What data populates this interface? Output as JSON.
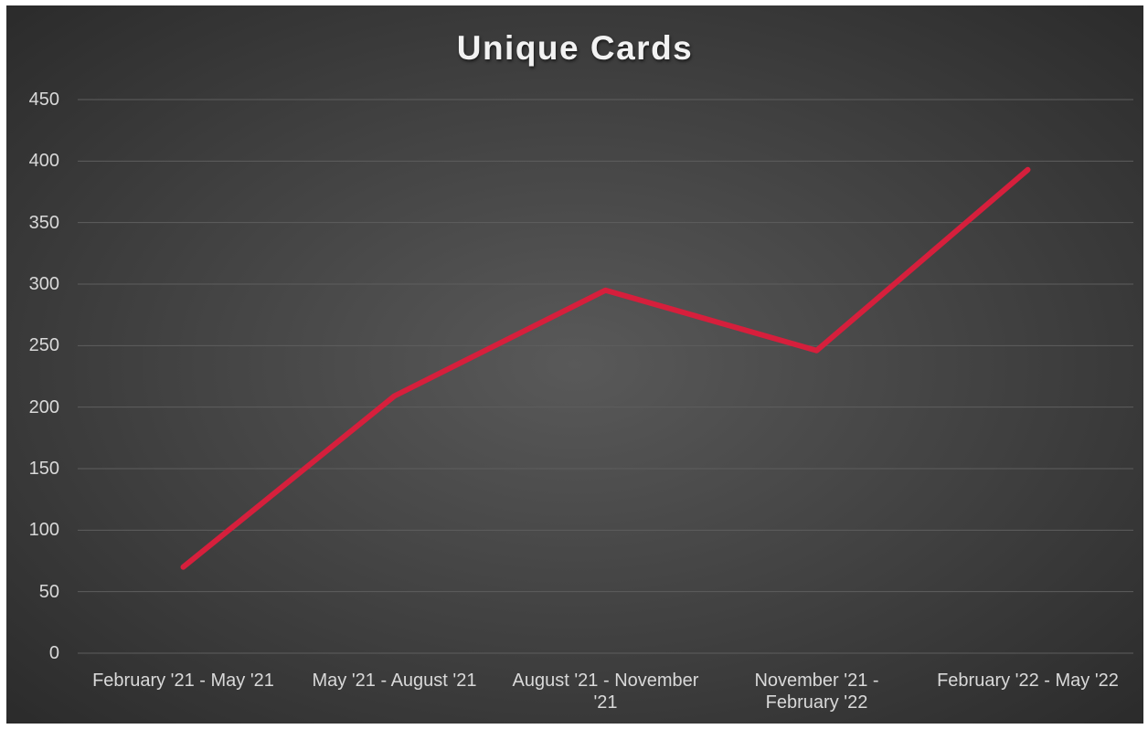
{
  "chart_data": {
    "type": "line",
    "title": "Unique Cards",
    "categories": [
      "February '21 - May '21",
      "May '21 - August '21",
      "August '21 - November '21",
      "November '21 - February '22",
      "February '22 - May '22"
    ],
    "series": [
      {
        "name": "Unique Cards",
        "color": "#d61f3c",
        "values": [
          70,
          209,
          295,
          246,
          393
        ]
      }
    ],
    "ylim": [
      0,
      450
    ],
    "yticks": [
      0,
      50,
      100,
      150,
      200,
      250,
      300,
      350,
      400,
      450
    ],
    "grid": true
  }
}
